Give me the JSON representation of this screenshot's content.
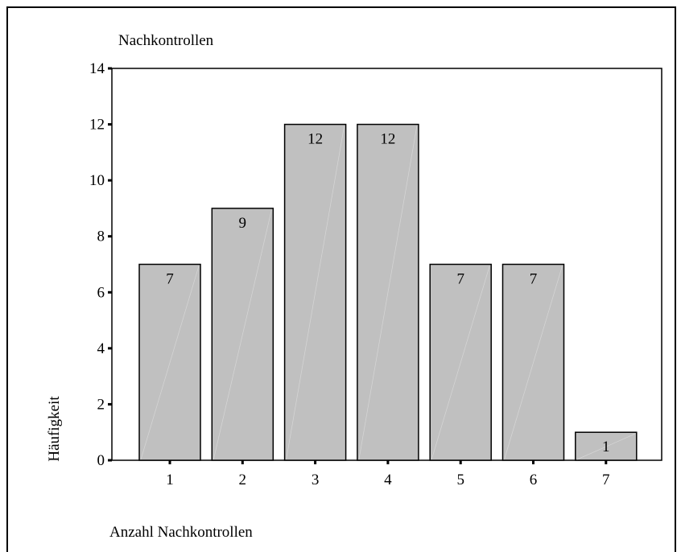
{
  "chart_data": {
    "type": "bar",
    "title": "Nachkontrollen",
    "xlabel": "Anzahl Nachkontrollen",
    "ylabel": "Häufigkeit",
    "categories": [
      "1",
      "2",
      "3",
      "4",
      "5",
      "6",
      "7"
    ],
    "values": [
      7,
      9,
      12,
      12,
      7,
      7,
      1
    ],
    "ylim": [
      0,
      14
    ],
    "yticks": [
      "0",
      "2",
      "4",
      "6",
      "8",
      "10",
      "12",
      "14"
    ],
    "grid": false,
    "data_labels": true,
    "colors": {
      "bar_fill": "#c0c0c0",
      "bar_stroke": "#000000",
      "axis": "#000000"
    }
  }
}
